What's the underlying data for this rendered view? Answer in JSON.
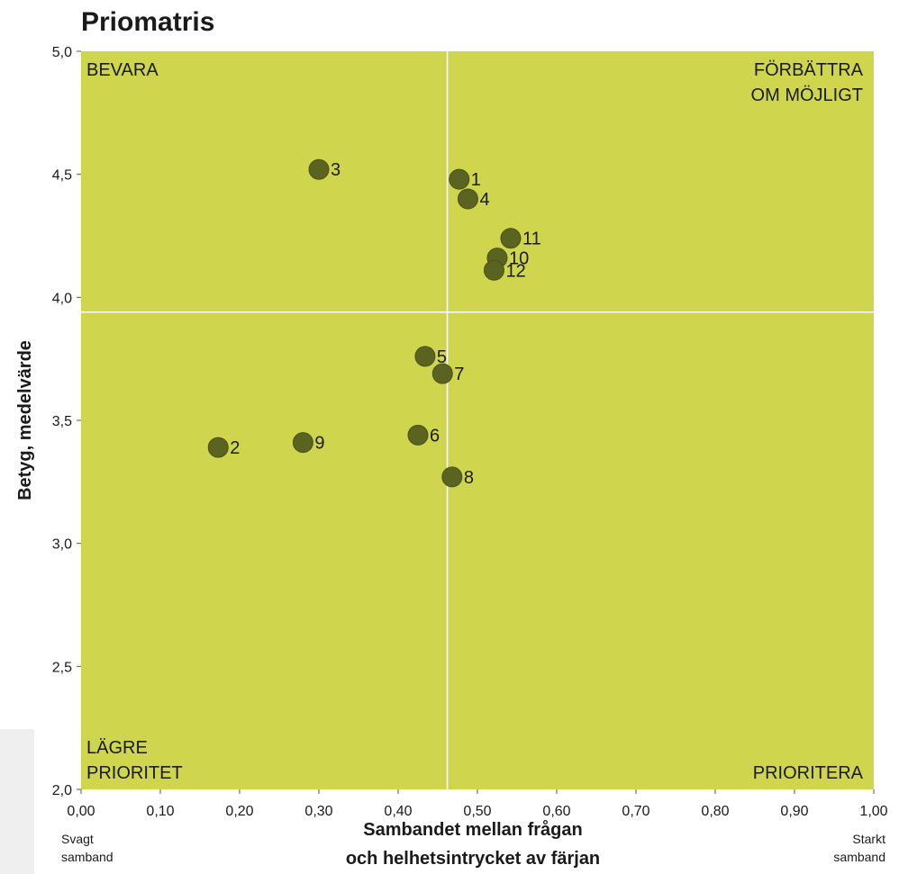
{
  "chart_data": {
    "type": "scatter",
    "title": "Priomatris",
    "xlabel_lines": [
      "Sambandet mellan frågan",
      "och helhetsintrycket av färjan"
    ],
    "ylabel": "Betyg, medelvärde",
    "xlim": [
      0,
      1
    ],
    "ylim": [
      2,
      5
    ],
    "x_ticks": [
      "0,00",
      "0,10",
      "0,20",
      "0,30",
      "0,40",
      "0,50",
      "0,60",
      "0,70",
      "0,80",
      "0,90",
      "1,00"
    ],
    "y_ticks": [
      "2,0",
      "2,5",
      "3,0",
      "3,5",
      "4,0",
      "4,5",
      "5,0"
    ],
    "divider_x": 0.462,
    "divider_y": 3.94,
    "grid": false,
    "quadrants": {
      "top_left": [
        "BEVARA"
      ],
      "top_right": [
        "FÖRBÄTTRA",
        "OM MÖJLIGT"
      ],
      "bottom_left": [
        "LÄGRE",
        "PRIORITET"
      ],
      "bottom_right": [
        "PRIORITERA"
      ]
    },
    "x_end_labels": {
      "left": [
        "Svagt",
        "samband"
      ],
      "right": [
        "Starkt",
        "samband"
      ]
    },
    "points": [
      {
        "label": "1",
        "x": 0.477,
        "y": 4.48
      },
      {
        "label": "2",
        "x": 0.173,
        "y": 3.39
      },
      {
        "label": "3",
        "x": 0.3,
        "y": 4.52
      },
      {
        "label": "4",
        "x": 0.488,
        "y": 4.4
      },
      {
        "label": "5",
        "x": 0.434,
        "y": 3.76
      },
      {
        "label": "6",
        "x": 0.425,
        "y": 3.44
      },
      {
        "label": "7",
        "x": 0.456,
        "y": 3.69
      },
      {
        "label": "8",
        "x": 0.468,
        "y": 3.27
      },
      {
        "label": "9",
        "x": 0.28,
        "y": 3.41
      },
      {
        "label": "10",
        "x": 0.525,
        "y": 4.16
      },
      {
        "label": "11",
        "x": 0.542,
        "y": 4.24
      },
      {
        "label": "12",
        "x": 0.521,
        "y": 4.11
      }
    ]
  },
  "colors": {
    "plot_bg": "#cfd64e",
    "marker": "#5a6320",
    "divider": "#ffffff",
    "text": "#1a1a1a"
  }
}
